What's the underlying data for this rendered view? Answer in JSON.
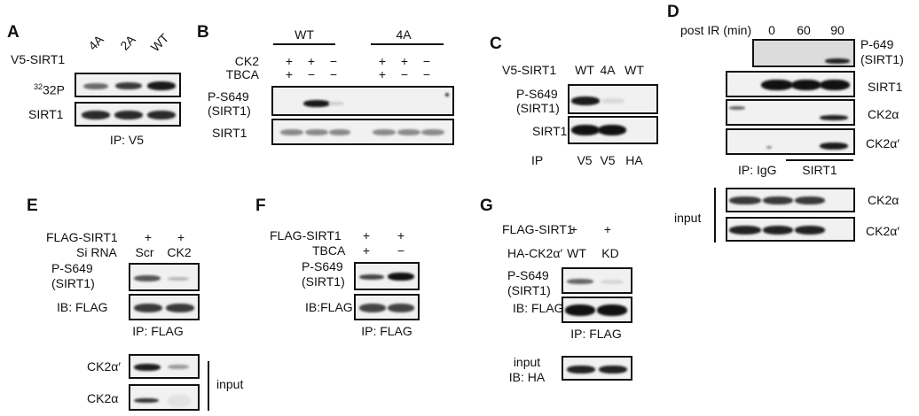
{
  "panels": {
    "A": {
      "letter": "A",
      "row_label": "V5-SIRT1",
      "lanes": [
        "4A",
        "2A",
        "WT"
      ],
      "blot1": "32P",
      "blot2": "SIRT1",
      "footer": "IP: V5"
    },
    "B": {
      "letter": "B",
      "group1": "WT",
      "group2": "4A",
      "ck2_label": "CK2",
      "tbca_label": "TBCA",
      "ck2_marks": [
        "+",
        "+",
        "−",
        "+",
        "+",
        "−"
      ],
      "tbca_marks": [
        "+",
        "−",
        "−",
        "+",
        "−",
        "−"
      ],
      "blot1_line1": "P-S649",
      "blot1_line2": "(SIRT1)",
      "blot2": "SIRT1"
    },
    "C": {
      "letter": "C",
      "row_label": "V5-SIRT1",
      "lanes": [
        "WT",
        "4A",
        "WT"
      ],
      "blot1_line1": "P-S649",
      "blot1_line2": "(SIRT1)",
      "blot2": "SIRT1",
      "ip_label": "IP",
      "ip_lanes": [
        "V5",
        "V5",
        "HA"
      ]
    },
    "D": {
      "letter": "D",
      "header": "post IR (min)",
      "times": [
        "0",
        "60",
        "90"
      ],
      "blot_labels": [
        "P-649",
        "(SIRT1)",
        "SIRT1",
        "CK2α",
        "CK2α′"
      ],
      "ip_label": "IP:",
      "ip_igg": "IgG",
      "ip_sirt1": "SIRT1",
      "input_label": "input",
      "input_blots": [
        "CK2α",
        "CK2α′"
      ]
    },
    "E": {
      "letter": "E",
      "row1_label": "FLAG-SIRT1",
      "row1_marks": [
        "+",
        "+"
      ],
      "row2_label": "Si RNA",
      "row2_lanes": [
        "Scr",
        "CK2"
      ],
      "blot1_line1": "P-S649",
      "blot1_line2": "(SIRT1)",
      "blot2": "IB: FLAG",
      "footer": "IP: FLAG",
      "input_blots": [
        "CK2α′",
        "CK2α"
      ],
      "input_label": "input"
    },
    "F": {
      "letter": "F",
      "row1_label": "FLAG-SIRT1",
      "row1_marks": [
        "+",
        "+"
      ],
      "row2_label": "TBCA",
      "row2_marks": [
        "+",
        "−"
      ],
      "blot1_line1": "P-S649",
      "blot1_line2": "(SIRT1)",
      "blot2": "IB:FLAG",
      "footer": "IP: FLAG"
    },
    "G": {
      "letter": "G",
      "row1_label": "FLAG-SIRT1",
      "row1_marks": [
        "+",
        "+"
      ],
      "row2_label": "HA-CK2α′",
      "row2_lanes": [
        "WT",
        "KD"
      ],
      "blot1_line1": "P-S649",
      "blot1_line2": "(SIRT1)",
      "blot2": "IB: FLAG",
      "footer": "IP: FLAG",
      "input_line1": "input",
      "input_line2": "IB: HA"
    }
  },
  "colors": {
    "band_dark": "#1a1a1a",
    "band_mid": "#555555",
    "band_faint": "#bdbdbd",
    "blot_bg": "#f1f1f1"
  }
}
